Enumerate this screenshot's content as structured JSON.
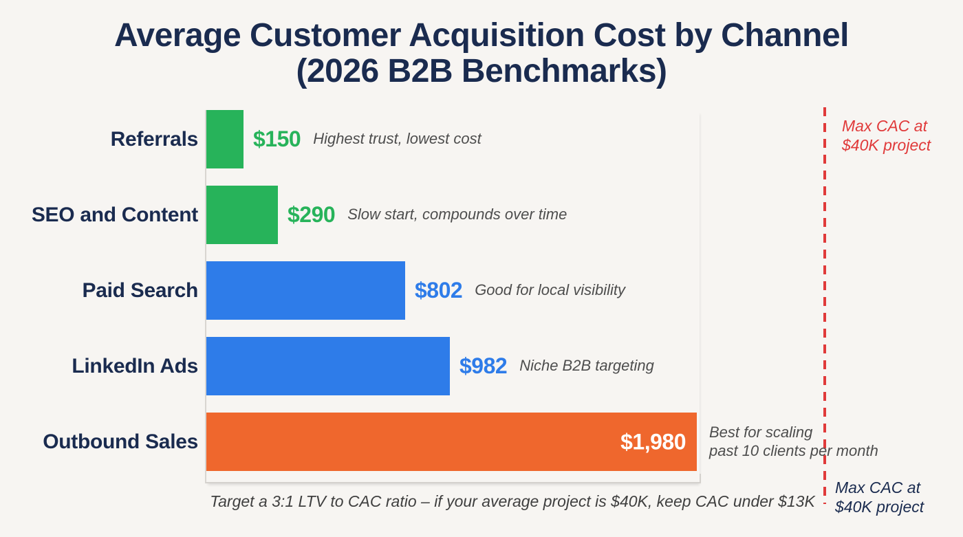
{
  "title": {
    "line1": "Average Customer Acquisition Cost by Channel",
    "line2": "(2026 B2B Benchmarks)"
  },
  "threshold": {
    "top_label": "Max CAC at\n$40K project",
    "bottom_label": "Max CAC at\n$40K project",
    "line_color": "#e03a3a",
    "line_style": "dashed"
  },
  "footer": "Target a 3:1 LTV to CAC ratio – if your average project is $40K, keep CAC under $13K",
  "colors": {
    "background": "#f7f5f2",
    "title_navy": "#1a2b4f",
    "green": "#27b35a",
    "blue": "#2e7ce9",
    "orange": "#ef672d",
    "threshold_red": "#e03a3a",
    "annotation_gray": "#4d4d4d",
    "axis_gray": "#d4d1cd",
    "value_inside_white": "#ffffff"
  },
  "chart_data": {
    "type": "bar",
    "orientation": "horizontal",
    "title": "Average Customer Acquisition Cost by Channel (2026 B2B Benchmarks)",
    "categories": [
      "Referrals",
      "SEO and Content",
      "Paid Search",
      "LinkedIn Ads",
      "Outbound Sales"
    ],
    "values": [
      150,
      290,
      802,
      982,
      1980
    ],
    "value_labels": [
      "$150",
      "$290",
      "$802",
      "$982",
      "$1,980"
    ],
    "bar_colors": [
      "#27b35a",
      "#27b35a",
      "#2e7ce9",
      "#2e7ce9",
      "#ef672d"
    ],
    "value_inside": [
      false,
      false,
      false,
      false,
      true
    ],
    "annotations": [
      "Highest trust, lowest cost",
      "Slow start, compounds over time",
      "Good for local visibility",
      "Niche B2B targeting",
      "Best for scaling\npast 10 clients per month"
    ],
    "xlim": [
      0,
      2000
    ],
    "grid": false,
    "legend": false,
    "reference_line": {
      "label": "Max CAC at $40K project",
      "color": "#e03a3a",
      "style": "dashed"
    }
  }
}
